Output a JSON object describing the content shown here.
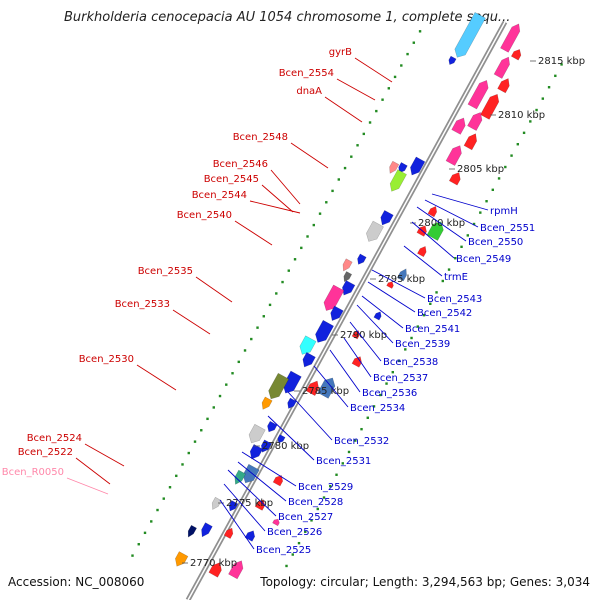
{
  "title": "Burkholderia cenocepacia AU 1054 chromosome 1, complete sequ...",
  "footer": {
    "accession_label": "Accession:",
    "accession": "NC_008060",
    "topology_label": "Topology:",
    "topology": "circular",
    "length_label": "Length:",
    "length": "3,294,563 bp",
    "genes_label": "Genes:",
    "genes": "3,034"
  },
  "colors": {
    "left_label": "#cc0000",
    "right_label": "#0000cc",
    "rna_label": "#ff88aa",
    "backbone": "#888888",
    "dots": "#228b22"
  },
  "kbp_ticks": [
    "2770 kbp",
    "2775 kbp",
    "2780 kbp",
    "2785 kbp",
    "2790 kbp",
    "2795 kbp",
    "2800 kbp",
    "2805 kbp",
    "2810 kbp",
    "2815 kbp"
  ],
  "left_labels": [
    {
      "text": "gyrB",
      "color": "#cc0000"
    },
    {
      "text": "Bcen_2554",
      "color": "#cc0000"
    },
    {
      "text": "dnaA",
      "color": "#cc0000"
    },
    {
      "text": "Bcen_2548",
      "color": "#cc0000"
    },
    {
      "text": "Bcen_2546",
      "color": "#cc0000"
    },
    {
      "text": "Bcen_2545",
      "color": "#cc0000"
    },
    {
      "text": "Bcen_2544",
      "color": "#cc0000"
    },
    {
      "text": "Bcen_2540",
      "color": "#cc0000"
    },
    {
      "text": "Bcen_2535",
      "color": "#cc0000"
    },
    {
      "text": "Bcen_2533",
      "color": "#cc0000"
    },
    {
      "text": "Bcen_2530",
      "color": "#cc0000"
    },
    {
      "text": "Bcen_2524",
      "color": "#cc0000"
    },
    {
      "text": "Bcen_2522",
      "color": "#cc0000"
    },
    {
      "text": "Bcen_R0050",
      "color": "#ff88aa"
    }
  ],
  "right_labels": [
    {
      "text": "rpmH"
    },
    {
      "text": "Bcen_2551"
    },
    {
      "text": "Bcen_2550"
    },
    {
      "text": "Bcen_2549"
    },
    {
      "text": "trmE"
    },
    {
      "text": "Bcen_2543"
    },
    {
      "text": "Bcen_2542"
    },
    {
      "text": "Bcen_2541"
    },
    {
      "text": "Bcen_2539"
    },
    {
      "text": "Bcen_2538"
    },
    {
      "text": "Bcen_2537"
    },
    {
      "text": "Bcen_2536"
    },
    {
      "text": "Bcen_2534"
    },
    {
      "text": "Bcen_2532"
    },
    {
      "text": "Bcen_2531"
    },
    {
      "text": "Bcen_2529"
    },
    {
      "text": "Bcen_2528"
    },
    {
      "text": "Bcen_2527"
    },
    {
      "text": "Bcen_2526"
    },
    {
      "text": "Bcen_2525"
    }
  ]
}
